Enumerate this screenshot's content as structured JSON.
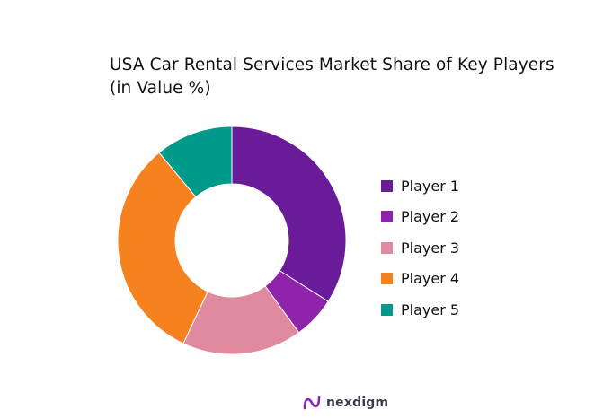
{
  "chart_data": {
    "type": "donut",
    "title": "USA Car Rental Services Market Share of Key Players",
    "subtitle": "(in Value %)",
    "legend_position": "right",
    "categories": [
      "Player 1",
      "Player 2",
      "Player 3",
      "Player 4",
      "Player 5"
    ],
    "values": [
      34,
      6,
      17,
      32,
      11
    ],
    "colors": [
      "#6a1b9a",
      "#8e24aa",
      "#e08aa0",
      "#f5821f",
      "#00998a"
    ]
  },
  "footer": {
    "brand": "nexdigm",
    "logo_icon": "nexdigm-logo-icon"
  }
}
